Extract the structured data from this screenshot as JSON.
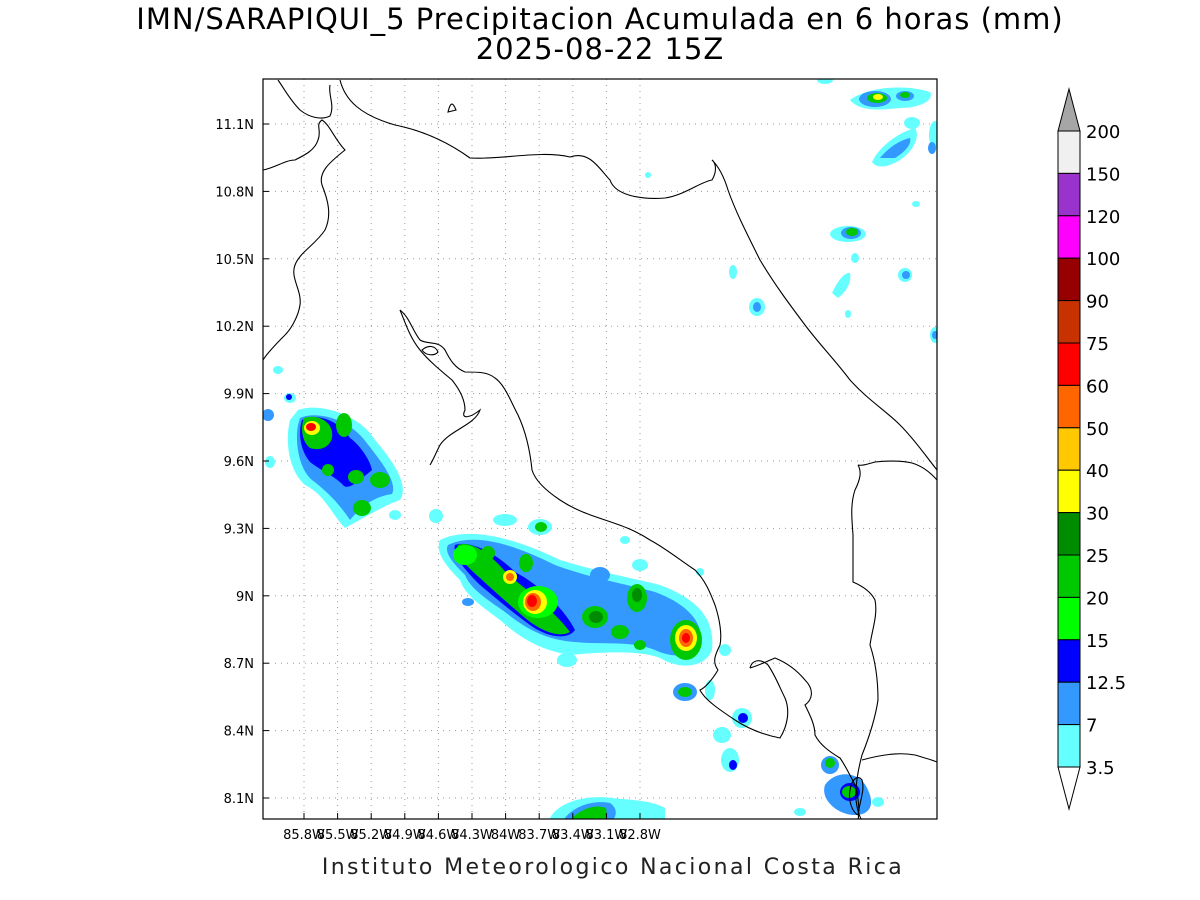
{
  "map": {
    "title_line1": "IMN/SARAPIQUI_5 Precipitacion Acumulada en 6 horas (mm)",
    "title_line2": "2025-08-22 15Z",
    "footer": "Instituto Meteorologico Nacional Costa Rica",
    "lon_ticks": [
      "85.8W",
      "85.5W",
      "85.2W",
      "84.9W",
      "84.6W",
      "84.3W",
      "84W",
      "83.7W",
      "83.4W",
      "83.1W",
      "82.8W"
    ],
    "lat_ticks": [
      "11.1N",
      "10.8N",
      "10.5N",
      "10.2N",
      "9.9N",
      "9.6N",
      "9.3N",
      "9N",
      "8.7N",
      "8.4N",
      "8.1N"
    ],
    "legend": {
      "levels": [
        "3.5",
        "7",
        "12.5",
        "15",
        "20",
        "25",
        "30",
        "40",
        "50",
        "60",
        "75",
        "90",
        "100",
        "120",
        "150",
        "200"
      ],
      "colors": [
        "#ffffff",
        "#66ffff",
        "#3399ff",
        "#0000ff",
        "#00ff00",
        "#00c800",
        "#008c00",
        "#ffff00",
        "#ffc800",
        "#ff6600",
        "#ff0000",
        "#c83200",
        "#960000",
        "#ff00ff",
        "#9933cc",
        "#f0f0f0",
        "#a6a6a6"
      ]
    }
  }
}
